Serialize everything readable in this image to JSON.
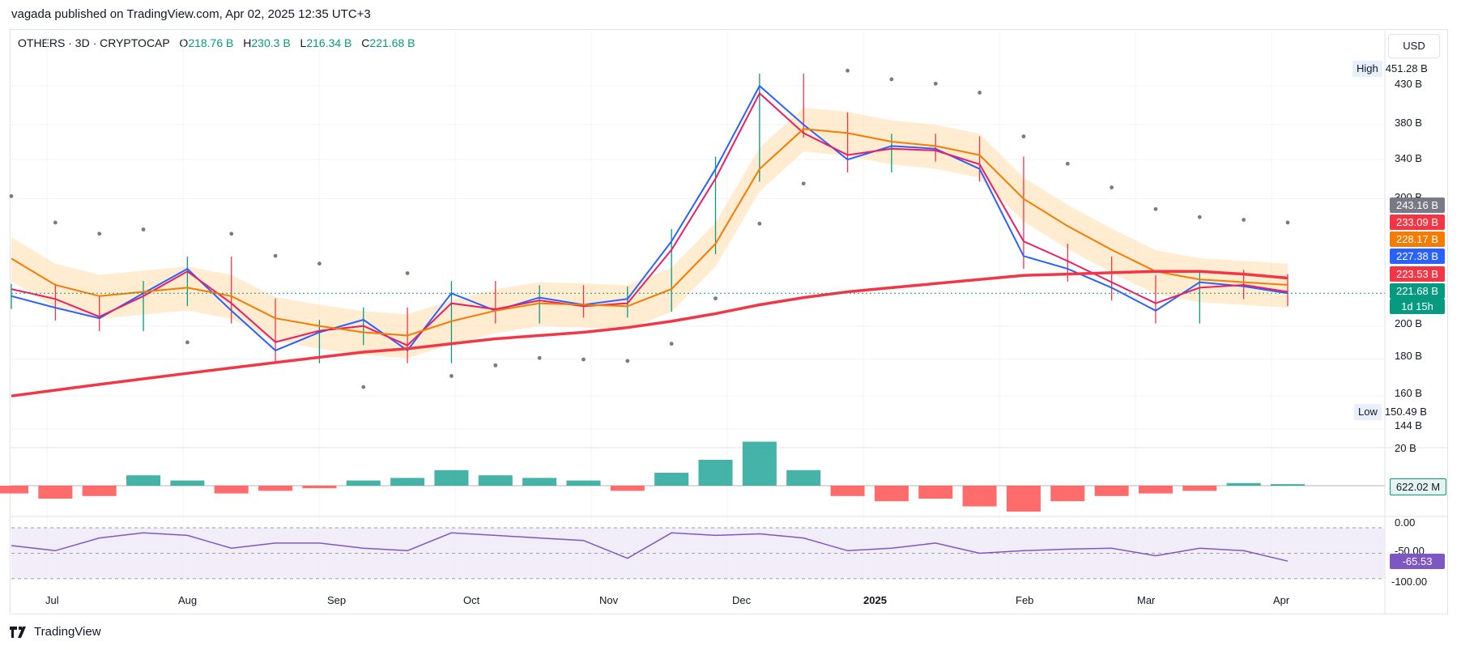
{
  "header": {
    "published": "vagada published on TradingView.com, Apr 02, 2025 12:35 UTC+3"
  },
  "legend": {
    "symbol": "OTHERS · 3D · CRYPTOCAP",
    "o_label": "O",
    "o_value": "218.76 B",
    "h_label": "H",
    "h_value": "230.3 B",
    "l_label": "L",
    "l_value": "216.34 B",
    "c_label": "C",
    "c_value": "221.68 B"
  },
  "currency": "USD",
  "price_axis": {
    "ticks": [
      "430 B",
      "380 B",
      "340 B",
      "300 B",
      "200 B",
      "180 B",
      "160 B",
      "144 B"
    ],
    "high_label": "High",
    "high_value": "451.28 B",
    "low_label": "Low",
    "low_value": "150.49 B"
  },
  "price_tags": [
    {
      "value": "243.16 B",
      "color": "#787b86"
    },
    {
      "value": "233.09 B",
      "color": "#f23645"
    },
    {
      "value": "228.17 B",
      "color": "#f57c00"
    },
    {
      "value": "227.38 B",
      "color": "#2962ff"
    },
    {
      "value": "223.53 B",
      "color": "#f23645"
    },
    {
      "value": "221.68 B",
      "color": "#089981"
    },
    {
      "value": "1d 15h",
      "color": "#089981"
    }
  ],
  "macd": {
    "top_tick": "20 B",
    "value": "622.02 M"
  },
  "rsi": {
    "ticks": [
      "0.00",
      "-50.00",
      "-100.00"
    ],
    "value": "-65.53"
  },
  "time_axis": [
    "Jul",
    "Aug",
    "Sep",
    "Oct",
    "Nov",
    "Dec",
    "2025",
    "Feb",
    "Mar",
    "Apr"
  ],
  "brand": "TradingView",
  "chart_data": {
    "type": "line",
    "title": "OTHERS · 3D · CRYPTOCAP",
    "xlabel": "",
    "ylabel": "",
    "ylim": [
      144,
      460
    ],
    "x": [
      "Jun 20",
      "Jun 30",
      "Jul 10",
      "Jul 20",
      "Jul 30",
      "Aug 09",
      "Aug 19",
      "Aug 29",
      "Sep 08",
      "Sep 18",
      "Sep 28",
      "Oct 08",
      "Oct 18",
      "Oct 28",
      "Nov 07",
      "Nov 17",
      "Nov 27",
      "Dec 07",
      "Dec 17",
      "Dec 27",
      "Jan 06",
      "Jan 16",
      "Jan 26",
      "Feb 05",
      "Feb 15",
      "Feb 25",
      "Mar 07",
      "Mar 17",
      "Mar 27",
      "Apr 02"
    ],
    "series": [
      {
        "name": "price",
        "color": "#2962ff",
        "values": [
          220,
          212,
          205,
          222,
          240,
          210,
          185,
          196,
          204,
          185,
          222,
          210,
          219,
          214,
          218,
          262,
          330,
          430,
          380,
          340,
          355,
          352,
          330,
          250,
          240,
          226,
          210,
          230,
          227,
          222
        ]
      },
      {
        "name": "ema_fast",
        "color": "#e91e63",
        "values": [
          225,
          218,
          206,
          220,
          238,
          215,
          190,
          197,
          200,
          188,
          215,
          211,
          217,
          213,
          215,
          255,
          320,
          420,
          370,
          345,
          352,
          350,
          335,
          262,
          246,
          230,
          215,
          226,
          228,
          223
        ]
      },
      {
        "name": "ema_slow",
        "color": "#f57c00",
        "values": [
          248,
          228,
          220,
          223,
          226,
          220,
          205,
          200,
          196,
          194,
          203,
          210,
          215,
          214,
          213,
          225,
          260,
          330,
          375,
          370,
          360,
          355,
          345,
          300,
          275,
          255,
          238,
          232,
          230,
          228
        ]
      },
      {
        "name": "ma_long",
        "color": "#f23645",
        "values": [
          160,
          163,
          166,
          169,
          172,
          175,
          178,
          181,
          184,
          186,
          189,
          192,
          194,
          196,
          199,
          203,
          208,
          214,
          219,
          223,
          226,
          229,
          232,
          235,
          236,
          237,
          238,
          238,
          236,
          233
        ]
      }
    ],
    "macd_histogram": [
      -3,
      -5,
      -4,
      4,
      2,
      -3,
      -2,
      -1,
      2,
      3,
      6,
      4,
      3,
      2,
      -2,
      5,
      10,
      17,
      6,
      -4,
      -6,
      -5,
      -8,
      -10,
      -6,
      -4,
      -3,
      -2,
      1,
      0.6
    ],
    "rsi_like": [
      -35,
      -45,
      -20,
      -10,
      -15,
      -40,
      -30,
      -30,
      -40,
      -45,
      -10,
      -15,
      -20,
      -25,
      -60,
      -10,
      -15,
      -12,
      -20,
      -45,
      -40,
      -30,
      -50,
      -45,
      -42,
      -40,
      -55,
      -40,
      -45,
      -65.53
    ],
    "yticks": [
      144,
      160,
      180,
      200,
      300,
      340,
      380,
      430
    ],
    "legend": "top-left",
    "grid": true
  }
}
